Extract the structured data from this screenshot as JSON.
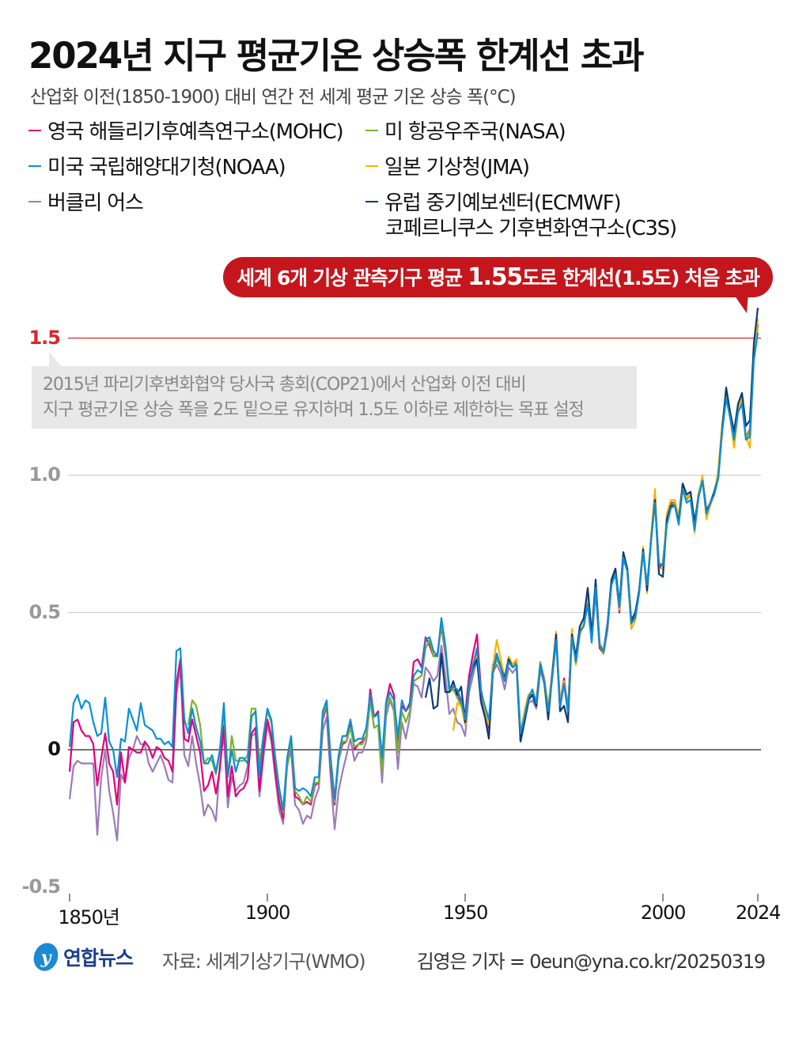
{
  "title": "2024년 지구 평균기온 상승폭 한계선 초과",
  "subtitle": "산업화 이전(1850-1900) 대비 연간 전 세계 평균 기온 상승 폭(°C)",
  "callout": {
    "pre": "세계 6개 기상 관측기구 평균 ",
    "value": "1.55",
    "post": "도로 한계선(1.5도) 처음 초과",
    "color": "#c4161c"
  },
  "note": {
    "line1": "2015년 파리기후변화협약 당사국 총회(COP21)에서 산업화 이전 대비",
    "line2": "지구 평균기온 상승 폭을 2도 밑으로 유지하며 1.5도 이하로 제한하는 목표 설정"
  },
  "footer": {
    "logo_text": "연합뉴스",
    "source": "자료: 세계기상기구(WMO)",
    "credit": "김영은 기자 = 0eun@yna.co.kr/20250319"
  },
  "chart_data": {
    "type": "line",
    "ylim": [
      -0.5,
      1.6
    ],
    "xlim": [
      1850,
      2024
    ],
    "yticks": [
      {
        "v": -0.5,
        "label": "-0.5"
      },
      {
        "v": 0,
        "label": "0"
      },
      {
        "v": 0.5,
        "label": "0.5"
      },
      {
        "v": 1.0,
        "label": "1.0"
      },
      {
        "v": 1.5,
        "label": "1.5"
      }
    ],
    "xticks": [
      {
        "v": 1850,
        "label": "1850년"
      },
      {
        "v": 1900,
        "label": "1900"
      },
      {
        "v": 1950,
        "label": "1950"
      },
      {
        "v": 2000,
        "label": "2000"
      },
      {
        "v": 2024,
        "label": "2024"
      }
    ],
    "threshold": {
      "v": 1.5,
      "color": "#d7272d"
    },
    "grid": true,
    "legend_placement": "top",
    "series": [
      {
        "name": "영국 해들리기후예측연구소(MOHC)",
        "color": "#e0007a",
        "start": 1850,
        "values": [
          -0.08,
          0.1,
          0.11,
          0.07,
          0.05,
          0.05,
          0.02,
          -0.13,
          -0.03,
          0.06,
          -0.05,
          -0.08,
          -0.2,
          -0.01,
          -0.12,
          0.01,
          0.0,
          -0.01,
          -0.01,
          0.03,
          0.01,
          -0.03,
          0.01,
          0.0,
          -0.03,
          -0.04,
          -0.08,
          0.24,
          0.33,
          0.04,
          0.03,
          0.11,
          0.05,
          -0.01,
          -0.15,
          -0.13,
          -0.08,
          -0.16,
          -0.07,
          0.09,
          -0.17,
          -0.06,
          -0.17,
          -0.15,
          -0.14,
          -0.11,
          0.06,
          0.08,
          -0.15,
          0.0,
          0.11,
          0.05,
          -0.08,
          -0.19,
          -0.25,
          -0.05,
          0.02,
          -0.17,
          -0.18,
          -0.2,
          -0.19,
          -0.2,
          -0.13,
          -0.12,
          0.11,
          0.16,
          -0.07,
          -0.2,
          -0.04,
          0.02,
          0.03,
          0.1,
          0.0,
          0.02,
          0.03,
          0.05,
          0.22,
          0.12,
          0.14,
          -0.07,
          0.17,
          0.24,
          0.2,
          0.01,
          0.16,
          0.14,
          0.17,
          0.32,
          0.33,
          0.3,
          0.41,
          0.38,
          0.34,
          0.35,
          0.45,
          0.35,
          0.23,
          0.22,
          0.21,
          0.17,
          0.13,
          0.27,
          0.35,
          0.42,
          0.22,
          0.15,
          0.08,
          0.31,
          0.34,
          0.31,
          0.25,
          0.33,
          0.31,
          0.32,
          0.04,
          0.13,
          0.19,
          0.2,
          0.18,
          0.31,
          0.26,
          0.15,
          0.28,
          0.42,
          0.17,
          0.26,
          0.15,
          0.43,
          0.32,
          0.42,
          0.46,
          0.53,
          0.4,
          0.58,
          0.37,
          0.35,
          0.44,
          0.61,
          0.65,
          0.5,
          0.69,
          0.66,
          0.46,
          0.49,
          0.58,
          0.73,
          0.58,
          0.77,
          0.92,
          0.66,
          0.68,
          0.84,
          0.9,
          0.9,
          0.84,
          0.96,
          0.92,
          0.93,
          0.8,
          0.93,
          0.99,
          0.87,
          0.9,
          0.94,
          1.0,
          1.17,
          1.3,
          1.22,
          1.13,
          1.24,
          1.27,
          1.13,
          1.16,
          1.45,
          1.55
        ]
      },
      {
        "name": "미국 국립해양대기청(NOAA)",
        "color": "#0a8fd6",
        "start": 1850,
        "values": [
          0.01,
          0.17,
          0.2,
          0.15,
          0.18,
          0.17,
          0.1,
          0.05,
          0.06,
          0.19,
          0.03,
          0.0,
          -0.1,
          0.04,
          0.03,
          0.15,
          0.11,
          0.07,
          0.17,
          0.09,
          0.08,
          0.07,
          0.04,
          0.04,
          0.02,
          0.03,
          0.01,
          0.36,
          0.37,
          0.11,
          0.06,
          0.15,
          0.08,
          0.03,
          -0.05,
          -0.05,
          -0.02,
          -0.08,
          0.0,
          0.17,
          -0.1,
          0.0,
          -0.08,
          -0.03,
          -0.03,
          -0.05,
          0.12,
          0.14,
          -0.1,
          0.05,
          0.15,
          0.11,
          -0.03,
          -0.14,
          -0.22,
          -0.03,
          0.05,
          -0.14,
          -0.15,
          -0.14,
          -0.15,
          -0.17,
          -0.1,
          -0.1,
          0.14,
          0.18,
          -0.03,
          -0.18,
          -0.02,
          0.05,
          0.05,
          0.11,
          0.03,
          0.04,
          0.04,
          0.08,
          0.2,
          0.12,
          0.13,
          -0.03,
          0.17,
          0.21,
          0.18,
          0.05,
          0.18,
          0.14,
          0.16,
          0.27,
          0.29,
          0.28,
          0.4,
          0.41,
          0.36,
          0.34,
          0.48,
          0.38,
          0.22,
          0.23,
          0.22,
          0.18,
          0.11,
          0.24,
          0.31,
          0.37,
          0.21,
          0.16,
          0.11,
          0.28,
          0.35,
          0.3,
          0.25,
          0.32,
          0.3,
          0.31,
          0.06,
          0.12,
          0.19,
          0.22,
          0.17,
          0.31,
          0.25,
          0.14,
          0.26,
          0.4,
          0.16,
          0.24,
          0.14,
          0.41,
          0.32,
          0.43,
          0.45,
          0.53,
          0.39,
          0.59,
          0.38,
          0.36,
          0.45,
          0.6,
          0.64,
          0.52,
          0.7,
          0.65,
          0.46,
          0.48,
          0.57,
          0.72,
          0.6,
          0.76,
          0.9,
          0.68,
          0.67,
          0.82,
          0.88,
          0.89,
          0.82,
          0.95,
          0.9,
          0.91,
          0.8,
          0.92,
          0.98,
          0.86,
          0.9,
          0.93,
          0.99,
          1.16,
          1.28,
          1.21,
          1.13,
          1.23,
          1.26,
          1.13,
          1.14,
          1.42,
          1.52
        ]
      },
      {
        "name": "버클리 어스",
        "color": "#9b7bb8",
        "start": 1850,
        "values": [
          -0.18,
          -0.06,
          -0.04,
          -0.05,
          -0.05,
          -0.05,
          -0.05,
          -0.31,
          -0.1,
          0.0,
          -0.15,
          -0.23,
          -0.33,
          -0.09,
          -0.12,
          -0.03,
          0.0,
          0.05,
          0.02,
          0.02,
          -0.05,
          -0.08,
          -0.05,
          -0.02,
          -0.06,
          -0.11,
          -0.12,
          0.2,
          0.3,
          -0.02,
          -0.06,
          0.05,
          -0.05,
          -0.13,
          -0.24,
          -0.2,
          -0.22,
          -0.26,
          -0.05,
          0.06,
          -0.21,
          -0.1,
          -0.15,
          -0.13,
          -0.12,
          -0.06,
          0.05,
          0.06,
          -0.17,
          -0.03,
          0.09,
          0.03,
          -0.1,
          -0.22,
          -0.27,
          -0.06,
          0.0,
          -0.2,
          -0.22,
          -0.27,
          -0.24,
          -0.25,
          -0.18,
          -0.14,
          0.07,
          0.12,
          -0.1,
          -0.29,
          -0.15,
          -0.08,
          -0.02,
          0.04,
          -0.04,
          -0.01,
          -0.01,
          0.03,
          0.18,
          0.08,
          0.09,
          -0.12,
          0.12,
          0.18,
          0.14,
          -0.07,
          0.1,
          0.04,
          0.12,
          0.24,
          0.23,
          0.19,
          0.3,
          0.28,
          0.25,
          0.27,
          0.38,
          0.27,
          0.13,
          0.15,
          0.1,
          0.09,
          0.05,
          0.21,
          0.27,
          0.33,
          0.17,
          0.12,
          0.07,
          0.28,
          0.31,
          0.28,
          0.22,
          0.3,
          0.28,
          0.3,
          0.03,
          0.1,
          0.17,
          0.18,
          0.15,
          0.29,
          0.24,
          0.12,
          0.26,
          0.4,
          0.15,
          0.24,
          0.13,
          0.42,
          0.31,
          0.42,
          0.46,
          0.53,
          0.4,
          0.58,
          0.38,
          0.35,
          0.44,
          0.61,
          0.65,
          0.51,
          0.69,
          0.66,
          0.46,
          0.49,
          0.58,
          0.73,
          0.58,
          0.77,
          0.92,
          0.67,
          0.68,
          0.84,
          0.9,
          0.9,
          0.84,
          0.96,
          0.92,
          0.93,
          0.81,
          0.93,
          0.99,
          0.87,
          0.9,
          0.94,
          1.0,
          1.17,
          1.3,
          1.22,
          1.14,
          1.24,
          1.28,
          1.14,
          1.17,
          1.46,
          1.57
        ]
      },
      {
        "name": "미 항공우주국(NASA)",
        "color": "#7ab32e",
        "start": 1880,
        "values": [
          0.09,
          0.18,
          0.16,
          0.09,
          -0.05,
          -0.03,
          -0.04,
          -0.09,
          0.0,
          0.14,
          -0.1,
          0.05,
          -0.04,
          -0.04,
          -0.04,
          -0.02,
          0.15,
          0.15,
          -0.05,
          0.05,
          0.14,
          0.1,
          -0.03,
          -0.15,
          -0.23,
          -0.06,
          0.03,
          -0.15,
          -0.17,
          -0.2,
          -0.17,
          -0.19,
          -0.12,
          -0.12,
          0.12,
          0.17,
          -0.05,
          -0.19,
          -0.04,
          0.03,
          0.03,
          0.08,
          0.01,
          0.02,
          0.02,
          0.05,
          0.18,
          0.08,
          0.09,
          -0.08,
          0.15,
          0.19,
          0.15,
          -0.01,
          0.14,
          0.1,
          0.14,
          0.25,
          0.26,
          0.27,
          0.37,
          0.4,
          0.34,
          0.34,
          0.46,
          0.36,
          0.21,
          0.22,
          0.19,
          0.16,
          0.1,
          0.24,
          0.3,
          0.37,
          0.2,
          0.15,
          0.09,
          0.28,
          0.33,
          0.3,
          0.25,
          0.32,
          0.31,
          0.31,
          0.05,
          0.12,
          0.19,
          0.21,
          0.17,
          0.32,
          0.26,
          0.15,
          0.27,
          0.41,
          0.16,
          0.25,
          0.14,
          0.42,
          0.32,
          0.43,
          0.46,
          0.54,
          0.4,
          0.58,
          0.38,
          0.35,
          0.45,
          0.61,
          0.65,
          0.51,
          0.69,
          0.66,
          0.47,
          0.49,
          0.58,
          0.73,
          0.59,
          0.77,
          0.91,
          0.67,
          0.68,
          0.83,
          0.89,
          0.9,
          0.83,
          0.96,
          0.91,
          0.93,
          0.81,
          0.93,
          0.99,
          0.87,
          0.9,
          0.94,
          1.0,
          1.17,
          1.29,
          1.22,
          1.13,
          1.24,
          1.27,
          1.13,
          1.16,
          1.44,
          1.54
        ]
      },
      {
        "name": "일본 기상청(JMA)",
        "color": "#f5b400",
        "start": 1947,
        "values": [
          0.07,
          0.17,
          0.16,
          0.09,
          0.24,
          0.3,
          0.35,
          0.19,
          0.14,
          0.09,
          0.3,
          0.4,
          0.33,
          0.26,
          0.34,
          0.31,
          0.33,
          0.06,
          0.14,
          0.2,
          0.21,
          0.18,
          0.31,
          0.26,
          0.16,
          0.28,
          0.43,
          0.17,
          0.25,
          0.14,
          0.44,
          0.31,
          0.42,
          0.46,
          0.55,
          0.41,
          0.6,
          0.39,
          0.36,
          0.45,
          0.62,
          0.66,
          0.51,
          0.7,
          0.66,
          0.44,
          0.47,
          0.58,
          0.74,
          0.57,
          0.78,
          0.95,
          0.66,
          0.66,
          0.86,
          0.91,
          0.91,
          0.85,
          0.97,
          0.92,
          0.93,
          0.79,
          0.92,
          1.0,
          0.84,
          0.89,
          0.93,
          1.02,
          1.19,
          1.29,
          1.21,
          1.1,
          1.23,
          1.29,
          1.14,
          1.1,
          1.44,
          1.57
        ]
      },
      {
        "name": "유럽 중기예보센터(ECMWF) 코페르니쿠스 기후변화연구소(C3S)",
        "color": "#0b3a74",
        "start": 1940,
        "values": [
          0.19,
          0.26,
          0.15,
          0.16,
          0.35,
          0.21,
          0.21,
          0.25,
          0.2,
          0.23,
          0.1,
          0.24,
          0.3,
          0.33,
          0.18,
          0.12,
          0.04,
          0.28,
          0.35,
          0.3,
          0.26,
          0.33,
          0.3,
          0.31,
          0.03,
          0.1,
          0.18,
          0.2,
          0.16,
          0.31,
          0.25,
          0.11,
          0.27,
          0.42,
          0.14,
          0.16,
          0.1,
          0.42,
          0.34,
          0.45,
          0.48,
          0.59,
          0.42,
          0.62,
          0.38,
          0.36,
          0.46,
          0.62,
          0.66,
          0.53,
          0.72,
          0.66,
          0.47,
          0.5,
          0.58,
          0.73,
          0.58,
          0.76,
          0.91,
          0.64,
          0.63,
          0.84,
          0.89,
          0.89,
          0.83,
          0.97,
          0.93,
          0.94,
          0.83,
          0.92,
          0.98,
          0.87,
          0.9,
          0.94,
          0.99,
          1.17,
          1.32,
          1.23,
          1.16,
          1.26,
          1.3,
          1.18,
          1.2,
          1.48,
          1.61
        ]
      }
    ],
    "legend": [
      {
        "label": "영국 해들리기후예측연구소(MOHC)",
        "color": "#e0007a"
      },
      {
        "label": "미 항공우주국(NASA)",
        "color": "#7ab32e"
      },
      {
        "label": "미국 국립해양대기청(NOAA)",
        "color": "#0a8fd6"
      },
      {
        "label": "일본 기상청(JMA)",
        "color": "#f5b400"
      },
      {
        "label": "버클리 어스",
        "color": "#9b7bb8"
      },
      {
        "label": "유럽 중기예보센터(ECMWF)",
        "label2": "코페르니쿠스 기후변화연구소(C3S)",
        "color": "#0b3a74"
      }
    ]
  }
}
